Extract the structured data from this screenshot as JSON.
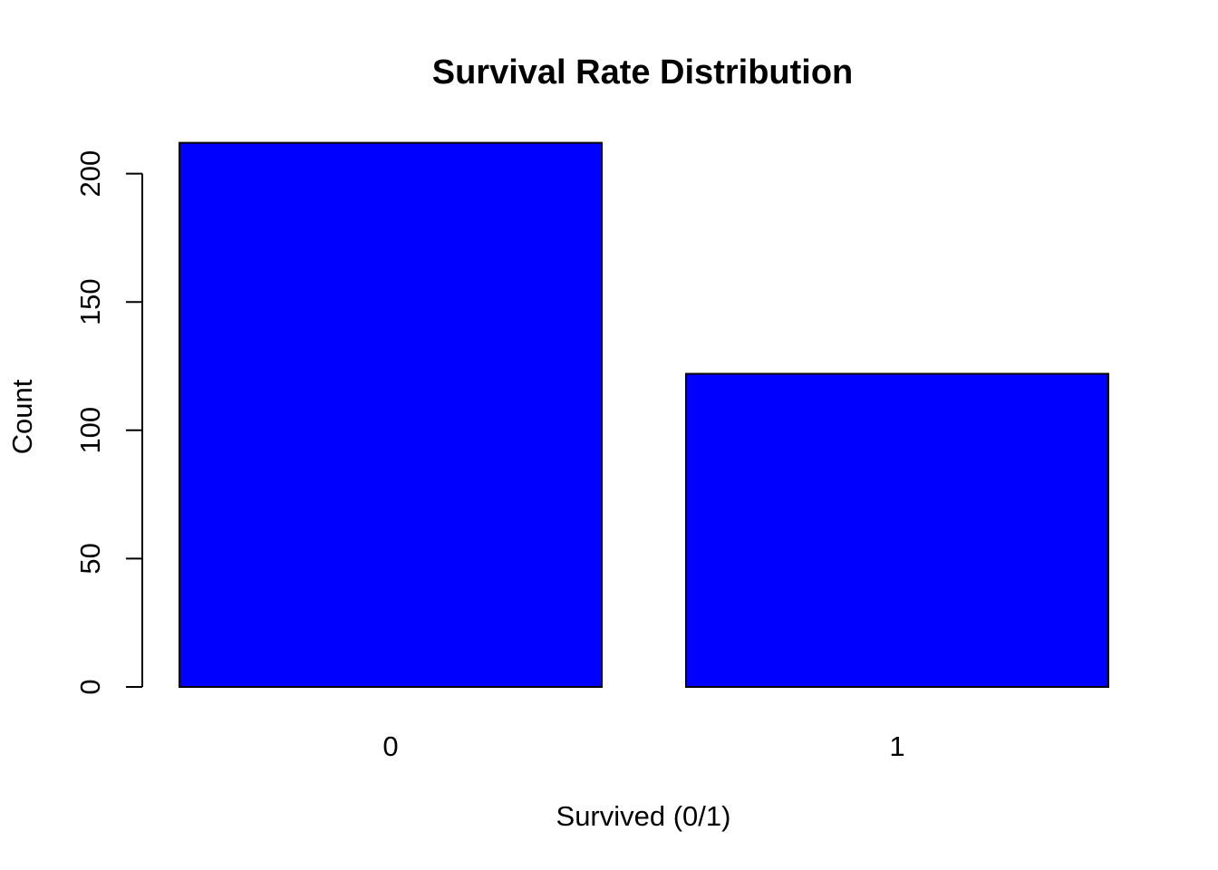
{
  "chart_data": {
    "type": "bar",
    "title": "Survival Rate Distribution",
    "xlabel": "Survived (0/1)",
    "ylabel": "Count",
    "categories": [
      "0",
      "1"
    ],
    "values": [
      212,
      122
    ],
    "ylim": [
      0,
      200
    ],
    "yticks": [
      0,
      50,
      100,
      150,
      200
    ],
    "bar_color": "#0000ff",
    "grid": false,
    "legend": "none"
  }
}
